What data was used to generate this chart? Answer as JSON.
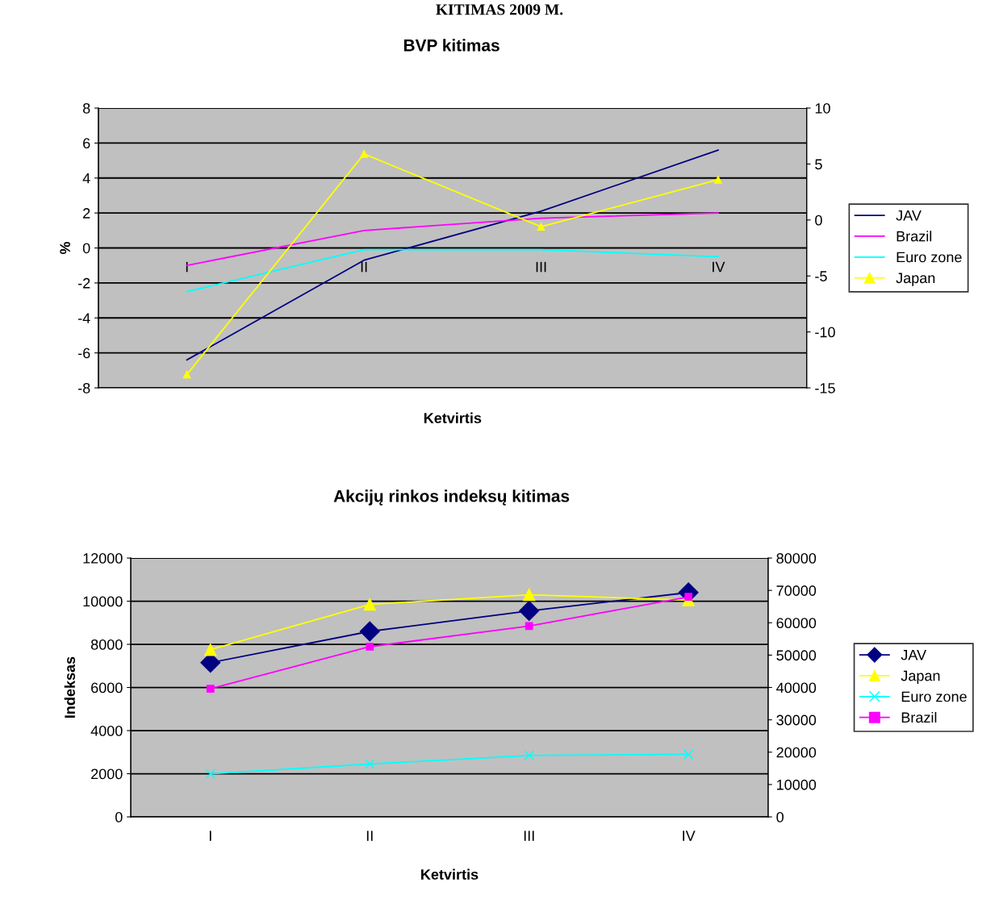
{
  "chart_data": [
    {
      "type": "line",
      "title": "BVP kitimas",
      "xlabel": "Ketvirtis",
      "ylabel": "%",
      "annotations": [
        "KITIMAS 2009 M."
      ],
      "categories": [
        "I",
        "II",
        "III",
        "IV"
      ],
      "ylim": [
        -8,
        8
      ],
      "yticks": [
        -8,
        -6,
        -4,
        -2,
        0,
        2,
        4,
        6,
        8
      ],
      "y2lim": [
        -15,
        10
      ],
      "y2ticks": [
        -15,
        -10,
        -5,
        0,
        5,
        10
      ],
      "grid": "y",
      "legend": "right",
      "series": [
        {
          "name": "JAV",
          "color": "#000080",
          "marker": "none",
          "values": [
            -6.4,
            -0.7,
            2.1,
            5.6
          ]
        },
        {
          "name": "Brazil",
          "color": "#ff00ff",
          "marker": "none",
          "values": [
            -1.0,
            1.0,
            1.7,
            2.0
          ]
        },
        {
          "name": "Euro zone",
          "color": "#00ffff",
          "marker": "none",
          "values": [
            -2.5,
            -0.1,
            -0.1,
            -0.5
          ]
        },
        {
          "name": "Japan",
          "color": "#ffff00",
          "marker": "triangle",
          "axis": "y2",
          "values": [
            -13.8,
            5.9,
            -0.6,
            3.6
          ]
        }
      ]
    },
    {
      "type": "line",
      "title": "Akcijų rinkos indeksų kitimas",
      "xlabel": "Ketvirtis",
      "ylabel": "Indeksas",
      "categories": [
        "I",
        "II",
        "III",
        "IV"
      ],
      "ylim": [
        0,
        12000
      ],
      "yticks": [
        0,
        2000,
        4000,
        6000,
        8000,
        10000,
        12000
      ],
      "y2lim": [
        0,
        80000
      ],
      "y2ticks": [
        0,
        10000,
        20000,
        30000,
        40000,
        50000,
        60000,
        70000,
        80000
      ],
      "grid": "y",
      "legend": "right",
      "series": [
        {
          "name": "JAV",
          "color": "#000080",
          "marker": "diamond",
          "values": [
            7150,
            8600,
            9550,
            10400
          ]
        },
        {
          "name": "Japan",
          "color": "#ffff00",
          "marker": "triangle",
          "values": [
            7750,
            9850,
            10300,
            10050
          ]
        },
        {
          "name": "Euro zone",
          "color": "#00ffff",
          "marker": "cross",
          "values": [
            2000,
            2450,
            2850,
            2900
          ]
        },
        {
          "name": "Brazil",
          "color": "#ff00ff",
          "marker": "square",
          "axis": "y2",
          "values": [
            39600,
            52600,
            59000,
            68000
          ]
        }
      ]
    }
  ]
}
